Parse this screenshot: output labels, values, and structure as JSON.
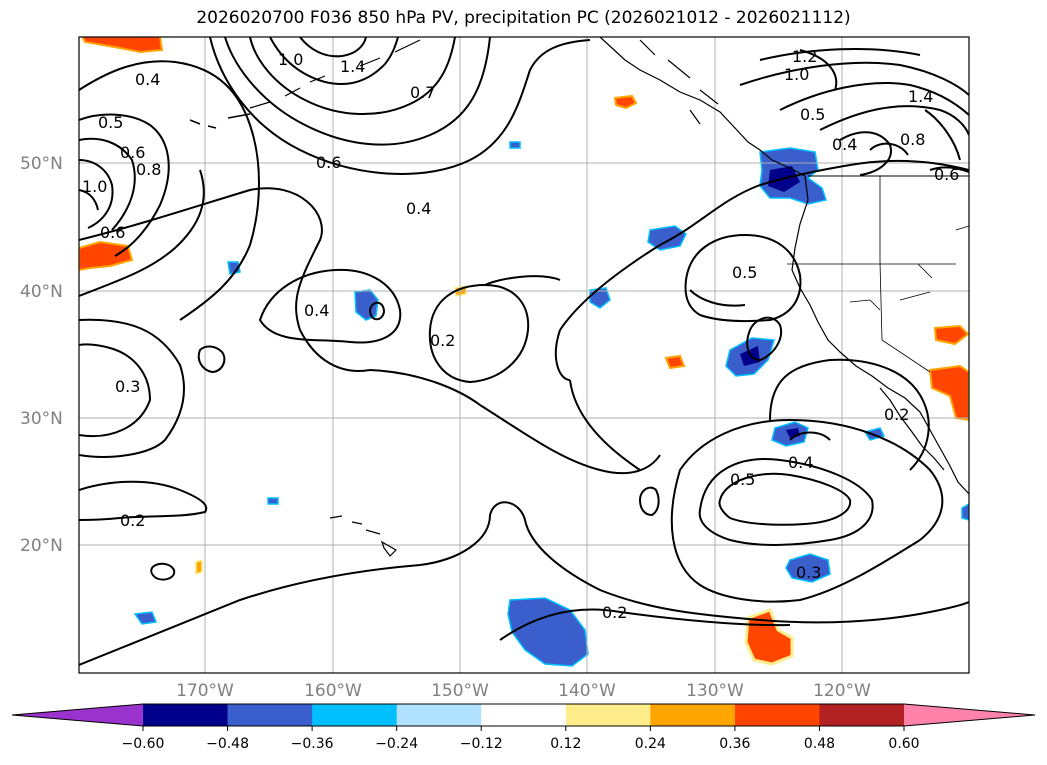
{
  "title": "2026020700 F036 850 hPa PV, precipitation PC (2026021012 - 2026021112)",
  "lat_labels": [
    "50°N",
    "40°N",
    "30°N",
    "20°N"
  ],
  "lon_labels": [
    "170°W",
    "160°W",
    "150°W",
    "140°W",
    "130°W",
    "120°W"
  ],
  "contour_labels": [
    "0.4",
    "0.5",
    "0.6",
    "0.8",
    "1.0",
    "0.6",
    "1.0",
    "1.4",
    "0.7",
    "1.2",
    "1.0",
    "1.4",
    "0.5",
    "0.4",
    "0.8",
    "0.6",
    "0.6",
    "0.4",
    "0.4",
    "0.2",
    "0.5",
    "0.3",
    "0.2",
    "0.5",
    "0.4",
    "0.3",
    "0.2",
    "0.2"
  ],
  "colorbar": {
    "ticks": [
      "−0.60",
      "−0.48",
      "−0.36",
      "−0.24",
      "−0.12",
      "0.12",
      "0.24",
      "0.36",
      "0.48",
      "0.60"
    ],
    "colors": [
      "#9a32cd",
      "#00008b",
      "#3a5fcd",
      "#00bfff",
      "#b0e2ff",
      "#ffffff",
      "#ffec8b",
      "#ffa500",
      "#ff4500",
      "#b22222",
      "#ff82ab"
    ]
  }
}
